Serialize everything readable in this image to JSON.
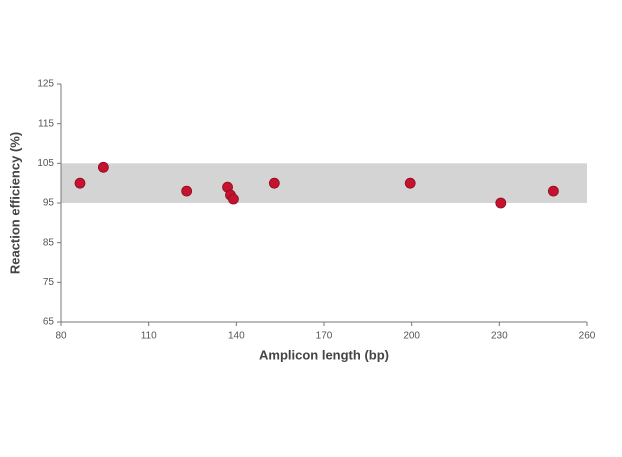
{
  "chart_data": {
    "type": "scatter",
    "x_label": "Amplicon length (bp)",
    "y_label": "Reaction efficiency (%)",
    "x": [
      86.5,
      94.5,
      123,
      137,
      138,
      139,
      153,
      199.5,
      230.5,
      248.5
    ],
    "values": [
      100,
      104,
      98,
      99,
      97,
      96,
      100,
      100,
      95,
      98
    ],
    "color": "#c4122f",
    "band": [
      95,
      105
    ],
    "band_color": "#d4d4d5",
    "xlim": [
      80,
      260
    ],
    "xticks": [
      80,
      110,
      140,
      170,
      200,
      230,
      260
    ],
    "ylim": [
      65,
      125
    ],
    "yticks": [
      65,
      75,
      85,
      95,
      105,
      115,
      125
    ]
  }
}
